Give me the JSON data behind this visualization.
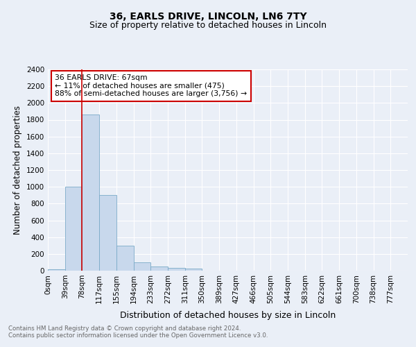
{
  "title1": "36, EARLS DRIVE, LINCOLN, LN6 7TY",
  "title2": "Size of property relative to detached houses in Lincoln",
  "xlabel": "Distribution of detached houses by size in Lincoln",
  "ylabel": "Number of detached properties",
  "categories": [
    "0sqm",
    "39sqm",
    "78sqm",
    "117sqm",
    "155sqm",
    "194sqm",
    "233sqm",
    "272sqm",
    "311sqm",
    "350sqm",
    "389sqm",
    "427sqm",
    "466sqm",
    "505sqm",
    "544sqm",
    "583sqm",
    "622sqm",
    "661sqm",
    "700sqm",
    "738sqm",
    "777sqm"
  ],
  "bar_heights": [
    20,
    1000,
    1860,
    900,
    300,
    100,
    50,
    30,
    25,
    0,
    0,
    0,
    0,
    0,
    0,
    0,
    0,
    0,
    0,
    0,
    0
  ],
  "bar_color": "#c8d8ec",
  "bar_edge_color": "#7aaac8",
  "ylim": [
    0,
    2400
  ],
  "yticks": [
    0,
    200,
    400,
    600,
    800,
    1000,
    1200,
    1400,
    1600,
    1800,
    2000,
    2200,
    2400
  ],
  "red_line_x": 2.0,
  "annotation_line1": "36 EARLS DRIVE: 67sqm",
  "annotation_line2": "← 11% of detached houses are smaller (475)",
  "annotation_line3": "88% of semi-detached houses are larger (3,756) →",
  "annotation_box_color": "#ffffff",
  "annotation_border_color": "#cc0000",
  "footer1": "Contains HM Land Registry data © Crown copyright and database right 2024.",
  "footer2": "Contains public sector information licensed under the Open Government Licence v3.0.",
  "bg_color": "#eaeff7",
  "plot_bg_color": "#eaeff7",
  "grid_color": "#ffffff",
  "title1_fontsize": 10,
  "title2_fontsize": 9,
  "tick_fontsize": 7.5,
  "ylabel_fontsize": 8.5,
  "xlabel_fontsize": 9
}
